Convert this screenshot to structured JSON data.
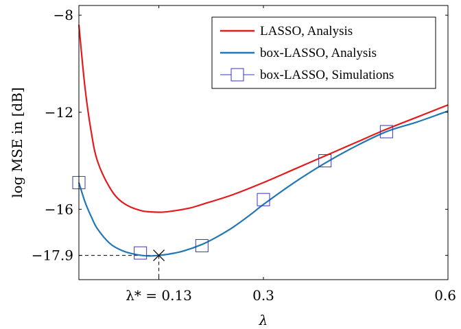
{
  "chart_data": {
    "type": "line",
    "xlabel": "λ",
    "ylabel": "log MSE in [dB]",
    "xlim": [
      0.0,
      0.6
    ],
    "ylim": [
      -18.9,
      -7.6
    ],
    "x_ticks": [
      {
        "value": 0.13,
        "label": "λ* = 0.13"
      },
      {
        "value": 0.3,
        "label": "0.3"
      },
      {
        "value": 0.6,
        "label": "0.6"
      }
    ],
    "y_ticks": [
      {
        "value": -8,
        "label": "−8"
      },
      {
        "value": -12,
        "label": "−12"
      },
      {
        "value": -16,
        "label": "−16"
      },
      {
        "value": -17.9,
        "label": "−17.9"
      }
    ],
    "legend_position": "top-right",
    "optimum": {
      "x": 0.13,
      "y": -17.9
    },
    "series": [
      {
        "name": "LASSO, Analysis",
        "color": "#e41a1c",
        "style": "line",
        "x": [
          0.0,
          0.01,
          0.02,
          0.03,
          0.05,
          0.07,
          0.1,
          0.13,
          0.15,
          0.18,
          0.2,
          0.25,
          0.3,
          0.35,
          0.4,
          0.45,
          0.5,
          0.55,
          0.6
        ],
        "y": [
          -8.4,
          -11.0,
          -12.8,
          -14.0,
          -15.1,
          -15.7,
          -16.05,
          -16.12,
          -16.08,
          -15.95,
          -15.8,
          -15.4,
          -14.9,
          -14.35,
          -13.8,
          -13.25,
          -12.7,
          -12.2,
          -11.7
        ]
      },
      {
        "name": "box-LASSO, Analysis",
        "color": "#1f77b4",
        "style": "line",
        "x": [
          0.0,
          0.01,
          0.02,
          0.03,
          0.05,
          0.07,
          0.09,
          0.11,
          0.13,
          0.15,
          0.17,
          0.2,
          0.22,
          0.25,
          0.28,
          0.3,
          0.35,
          0.4,
          0.45,
          0.5,
          0.55,
          0.6
        ],
        "y": [
          -14.9,
          -15.7,
          -16.3,
          -16.8,
          -17.4,
          -17.7,
          -17.85,
          -17.92,
          -17.9,
          -17.83,
          -17.72,
          -17.45,
          -17.2,
          -16.75,
          -16.2,
          -15.8,
          -14.9,
          -14.1,
          -13.4,
          -12.8,
          -12.4,
          -11.95
        ]
      },
      {
        "name": "box-LASSO, Simulations",
        "color": "#3333cc",
        "style": "marker",
        "marker": "square",
        "x": [
          0.0,
          0.1,
          0.2,
          0.3,
          0.4,
          0.5
        ],
        "y": [
          -14.9,
          -17.8,
          -17.5,
          -15.6,
          -14.0,
          -12.8
        ]
      }
    ]
  }
}
